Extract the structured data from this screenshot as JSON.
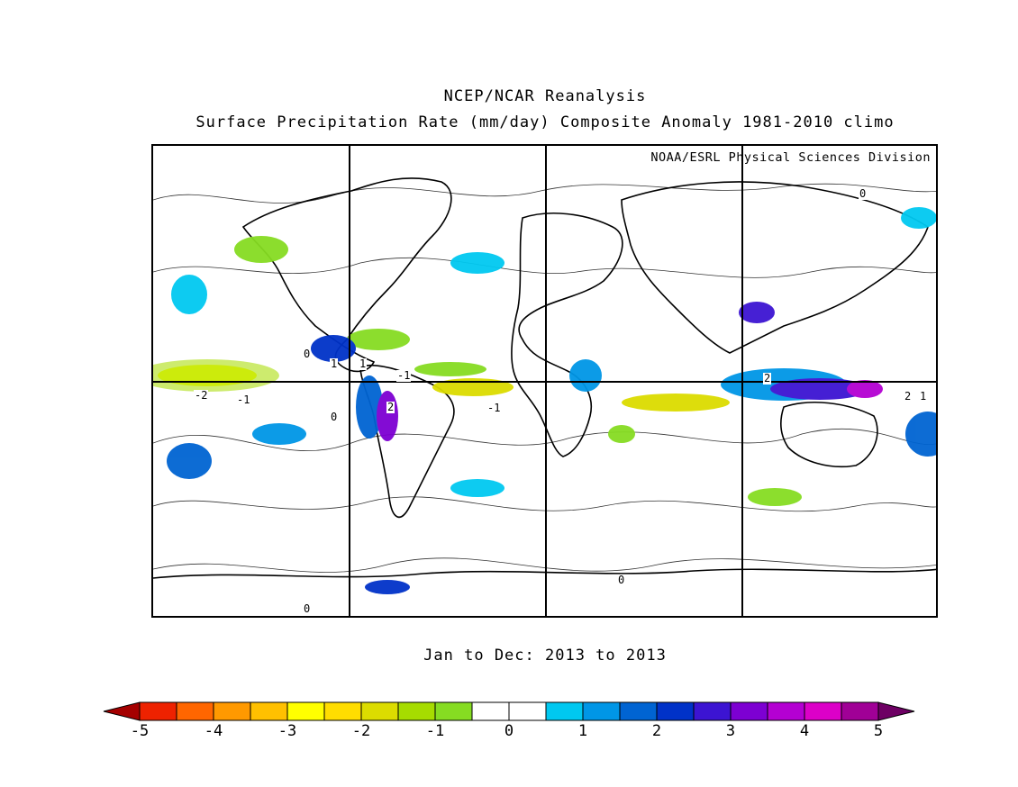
{
  "title": {
    "line1": "NCEP/NCAR Reanalysis",
    "line2": "Surface Precipitation Rate (mm/day) Composite Anomaly 1981-2010 climo"
  },
  "credit": "NOAA/ESRL Physical Sciences Division",
  "period": "Jan to Dec: 2013 to 2013",
  "colorbar": {
    "min": -5,
    "max": 5,
    "step": 0.5,
    "tick_labels": [
      "-5",
      "-4",
      "-3",
      "-2",
      "-1",
      "0",
      "1",
      "2",
      "3",
      "4",
      "5"
    ],
    "colors": [
      "#a50000",
      "#ee2200",
      "#ff6600",
      "#ff9900",
      "#ffc000",
      "#ffff00",
      "#ffdd00",
      "#dcdc00",
      "#a6dc00",
      "#86dc22",
      "#ffffff",
      "#ffffff",
      "#00c8f0",
      "#0096e6",
      "#0064d2",
      "#0032c8",
      "#3c14d2",
      "#7d00d2",
      "#b400d2",
      "#dc00c8",
      "#a00096",
      "#6e0064"
    ]
  },
  "contour_labels": [
    "1",
    "1",
    "-1",
    "2",
    "-2",
    "-1",
    "-1",
    "2",
    "2",
    "1",
    "0",
    "0",
    "0",
    "0",
    "0"
  ],
  "chart_data": {
    "type": "heatmap",
    "title": "NCEP/NCAR Reanalysis — Surface Precipitation Rate (mm/day) Composite Anomaly 1981-2010 climo",
    "period": "Jan to Dec: 2013 to 2013",
    "projection": "cylindrical equidistant",
    "grid_lines": {
      "longitudes": [
        90,
        180,
        270
      ],
      "latitudes": [
        0
      ]
    },
    "units": "mm/day",
    "color_range": [
      -5,
      5
    ]
  }
}
